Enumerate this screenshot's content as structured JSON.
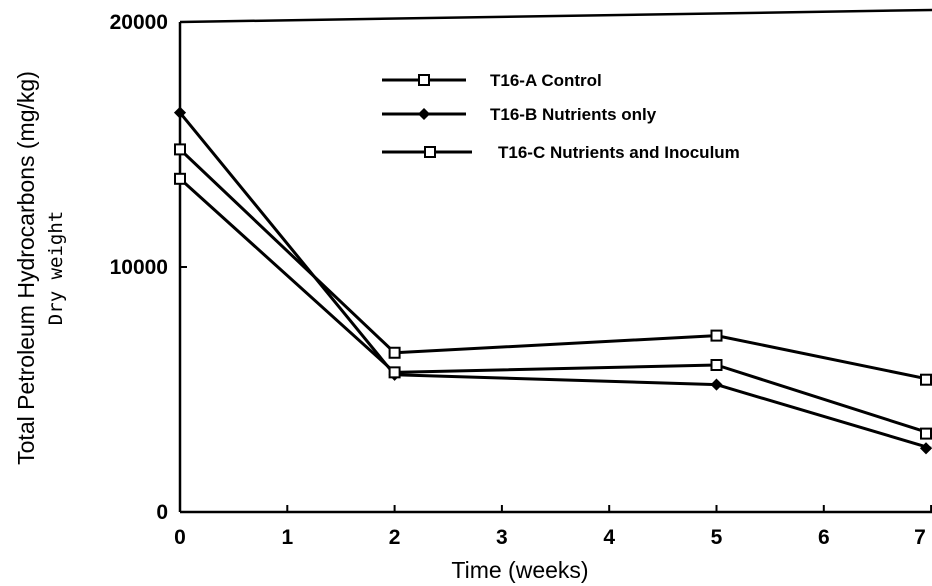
{
  "chart_data": {
    "type": "line",
    "title": "",
    "xlabel": "Time (weeks)",
    "ylabel": "Total Petroleum Hydrocarbons (mg/kg)",
    "ylabel_sub": "Dry weight",
    "xlim": [
      0,
      7
    ],
    "ylim": [
      0,
      20000
    ],
    "x_ticks": [
      "0",
      "1",
      "2",
      "3",
      "4",
      "5",
      "6",
      "7"
    ],
    "y_ticks": [
      "0",
      "10000",
      "20000"
    ],
    "grid": false,
    "legend_position": "top-center",
    "series": [
      {
        "name": "T16-A Control",
        "marker": "open-square",
        "x": [
          0,
          2,
          5,
          7
        ],
        "y": [
          14800,
          6500,
          7200,
          5400
        ]
      },
      {
        "name": "T16-B Nutrients only",
        "marker": "filled-diamond",
        "x": [
          0,
          2,
          5,
          7
        ],
        "y": [
          16300,
          5600,
          5200,
          2600
        ]
      },
      {
        "name": "T16-C Nutrients and Inoculum",
        "marker": "open-square",
        "x": [
          0,
          2,
          5,
          7
        ],
        "y": [
          13600,
          5700,
          6000,
          3200
        ]
      }
    ]
  }
}
